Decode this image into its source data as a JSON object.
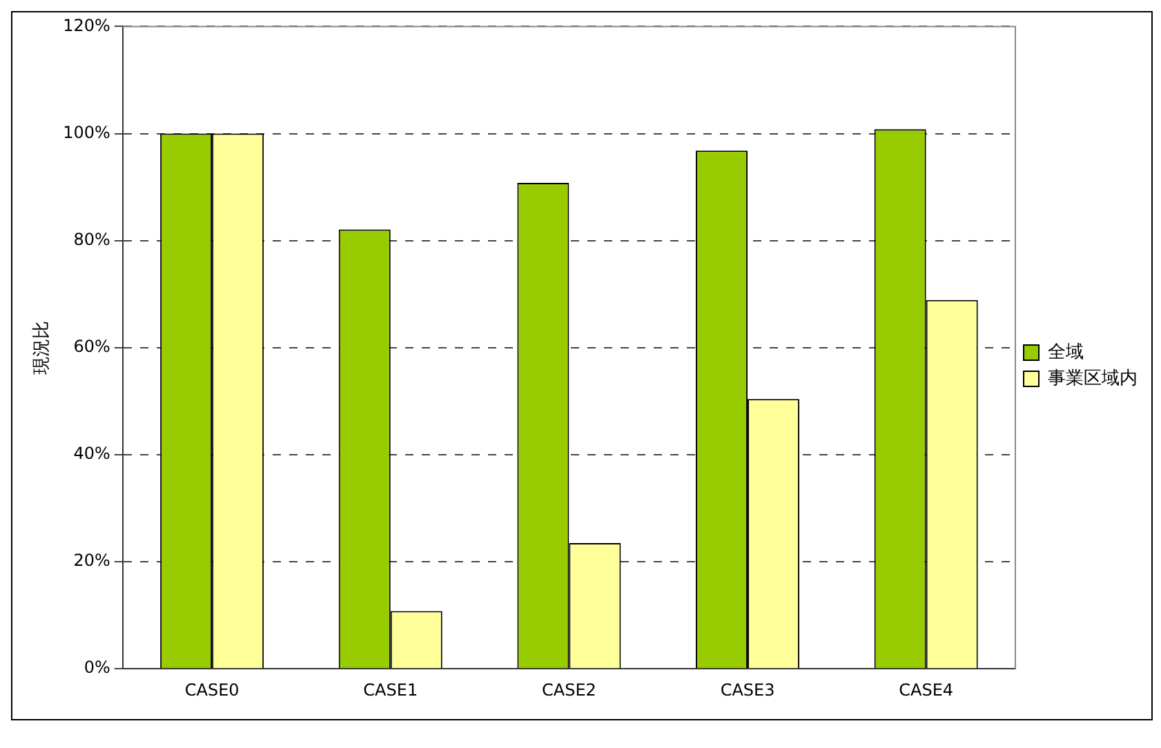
{
  "chart_data": {
    "type": "bar",
    "ylabel": "現況比",
    "categories": [
      "CASE0",
      "CASE1",
      "CASE2",
      "CASE3",
      "CASE4"
    ],
    "series": [
      {
        "name": "全域",
        "color": "#99cc00",
        "values": [
          100,
          82.1,
          90.8,
          96.8,
          100.8
        ]
      },
      {
        "name": "事業区域内",
        "color": "#ffff99",
        "values": [
          100,
          10.8,
          23.5,
          50.4,
          68.9
        ]
      }
    ],
    "ylim": [
      0,
      120
    ],
    "yticks": [
      {
        "value": 0,
        "label": "0%"
      },
      {
        "value": 20,
        "label": "20%"
      },
      {
        "value": 40,
        "label": "40%"
      },
      {
        "value": 60,
        "label": "60%"
      },
      {
        "value": 80,
        "label": "80%"
      },
      {
        "value": 100,
        "label": "100%"
      },
      {
        "value": 120,
        "label": "120%"
      }
    ],
    "grid": "y",
    "line_style": "dashed",
    "legend": "right"
  }
}
